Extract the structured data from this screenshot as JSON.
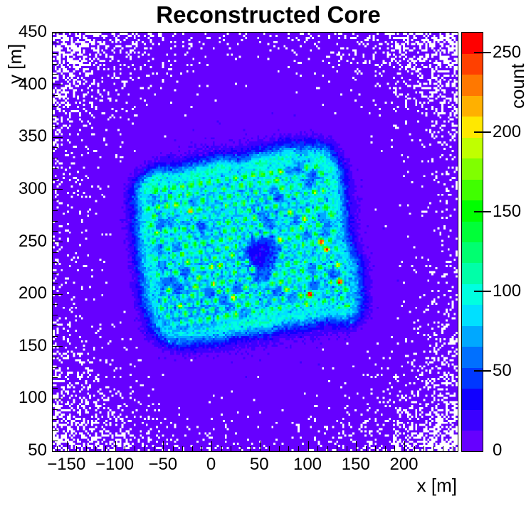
{
  "chart_data": {
    "type": "heatmap",
    "title": "Reconstructed Core",
    "xlabel": "x [m]",
    "ylabel": "y [m]",
    "zlabel": "count",
    "x_range": [
      -165,
      255
    ],
    "y_range": [
      50,
      450
    ],
    "z_range": [
      0,
      263
    ],
    "x_tick_values": [
      -150,
      -100,
      -50,
      0,
      50,
      100,
      150,
      200
    ],
    "x_tick_labels": [
      "−150",
      "−100",
      "−50",
      "0",
      "50",
      "100",
      "150",
      "200"
    ],
    "y_tick_values": [
      50,
      100,
      150,
      200,
      250,
      300,
      350,
      400,
      450
    ],
    "y_tick_labels": [
      "50",
      "100",
      "150",
      "200",
      "250",
      "300",
      "350",
      "400",
      "450"
    ],
    "z_tick_values": [
      0,
      50,
      100,
      150,
      200,
      250
    ],
    "z_tick_labels": [
      "0",
      "50",
      "100",
      "150",
      "200",
      "250"
    ],
    "minor_tick_step": 10,
    "grid": false,
    "bins": [
      200,
      200
    ],
    "legend_position": "colorbar-right",
    "tick_style": "inside",
    "frame_color": "#000000",
    "background_color": "#ffffff",
    "empty_bin_color": "#ffffff",
    "palette_bottom_to_top": [
      "#6600FF",
      "#3B00FF",
      "#1000FF",
      "#0038FF",
      "#0070FF",
      "#00A8FF",
      "#00E0FF",
      "#00FFE0",
      "#00FFA8",
      "#00FF70",
      "#00FF38",
      "#00FF00",
      "#40FF00",
      "#80FF00",
      "#C0FF00",
      "#FFE800",
      "#FFB000",
      "#FF7800",
      "#FF4000",
      "#FF0000"
    ],
    "distribution": {
      "description": "2D histogram of reconstructed shower core positions: broad circular halo of low counts over the whole field, dense rotated square detector-array footprint with bright cyan rim, hexagonal lattice of detector-station hot spots, small low-count hole near array centre, Poisson noise everywhere, empty bins white.",
      "halo": {
        "center_m": [
          45,
          250
        ],
        "sigma_m": 105,
        "peak_counts": 13,
        "floor_counts": 0.12
      },
      "footprint": {
        "center_m": [
          34,
          247
        ],
        "half_size_m": [
          102,
          78
        ],
        "corner_radius_m": 26,
        "rotation_deg": 8,
        "plateau_counts": 50,
        "rim_peak_counts": 52,
        "rim_width_in_m": 6.5,
        "rim_width_out_m": 9
      },
      "annex": {
        "center_m": [
          130,
          207
        ],
        "half_size_m": [
          18,
          26
        ],
        "corner_radius_m": 12
      },
      "hole": {
        "center_m": [
          52,
          238
        ],
        "sigma_m": 14,
        "depth_counts": 36
      },
      "stations": {
        "lattice": "hexagonal",
        "spacing_m": 9.3,
        "row_height_m": 8.05,
        "sigma_m": 2.2,
        "base_counts": 55,
        "random_extra_counts": 55,
        "bright_fraction": 0.07,
        "bright_extra_counts": 65,
        "vacancy_fraction": 0.1
      },
      "hot_stations_m": [
        [
          115,
          253
        ],
        [
          117,
          246
        ],
        [
          129,
          209
        ],
        [
          104,
          197
        ]
      ],
      "hot_station_counts": 235,
      "mottle_scale_m": 22,
      "seed": 20240416
    }
  }
}
